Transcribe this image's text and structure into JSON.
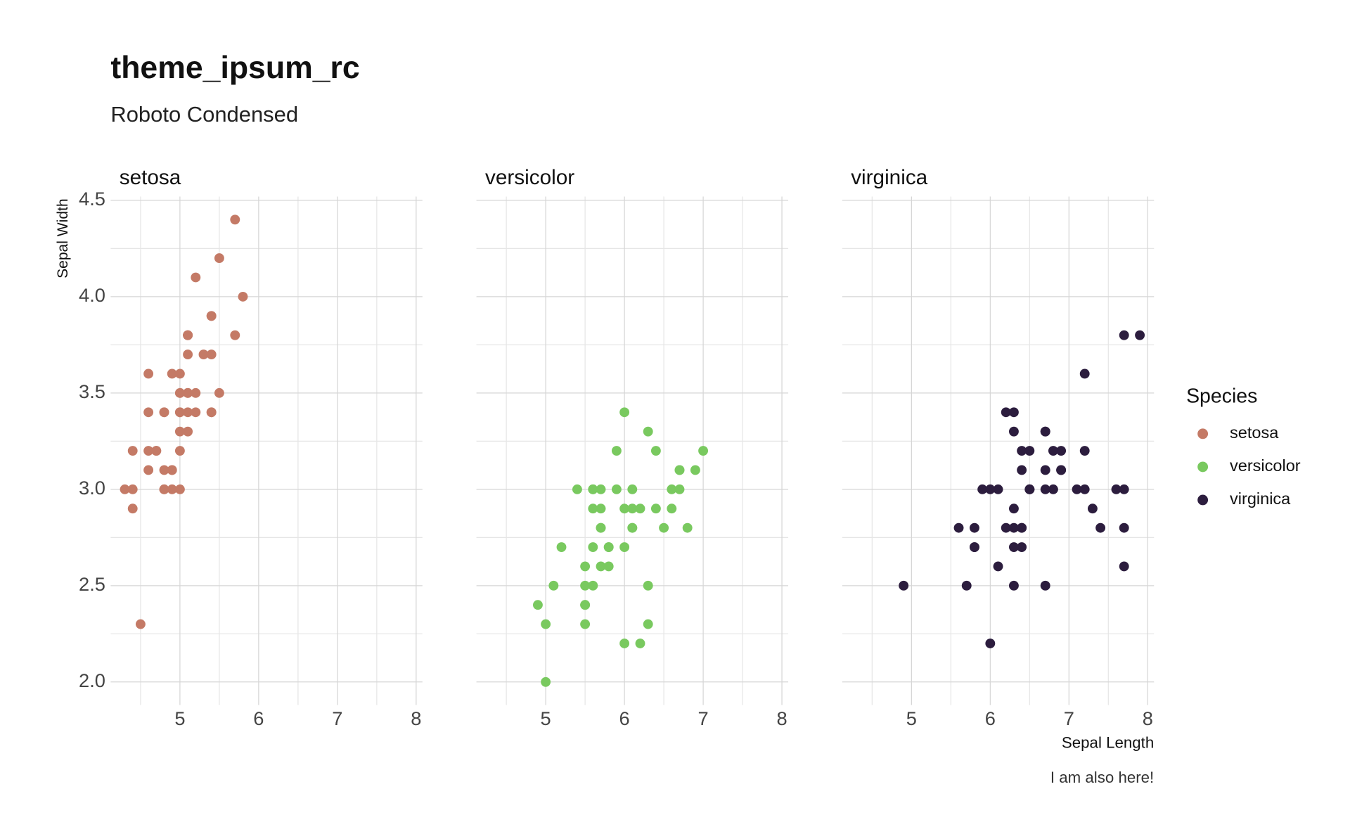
{
  "chart_data": {
    "type": "scatter",
    "title": "theme_ipsum_rc",
    "subtitle": "Roboto Condensed",
    "caption": "I am also here!",
    "xlabel": "Sepal Length",
    "ylabel": "Sepal Width",
    "legend_title": "Species",
    "legend_position": "right",
    "facet": true,
    "grid": true,
    "xlim": [
      4.12,
      8.08
    ],
    "ylim": [
      1.88,
      4.52
    ],
    "xticks": [
      5,
      6,
      7,
      8
    ],
    "yticks": [
      {
        "value": 2,
        "label": "2.0"
      },
      2.5,
      {
        "value": 3,
        "label": "3.0"
      },
      3.5,
      {
        "value": 4,
        "label": "4.0"
      },
      4.5
    ],
    "xminor": [
      4.5,
      5.5,
      6.5,
      7.5
    ],
    "yminor": [
      2.25,
      2.75,
      3.25,
      3.75,
      4.25
    ],
    "series": [
      {
        "name": "setosa",
        "color": "#c47a66",
        "x": [
          5.1,
          4.9,
          4.7,
          4.6,
          5.0,
          5.4,
          4.6,
          5.0,
          4.4,
          4.9,
          5.4,
          4.8,
          4.8,
          4.3,
          5.8,
          5.7,
          5.4,
          5.1,
          5.7,
          5.1,
          5.4,
          5.1,
          4.6,
          5.1,
          4.8,
          5.0,
          5.0,
          5.2,
          5.2,
          4.7,
          4.8,
          5.4,
          5.2,
          5.5,
          4.9,
          5.0,
          5.5,
          4.9,
          4.4,
          5.1,
          5.0,
          4.5,
          4.4,
          5.0,
          5.1,
          4.8,
          5.1,
          4.6,
          5.3,
          5.0
        ],
        "values": [
          3.5,
          3.0,
          3.2,
          3.1,
          3.6,
          3.9,
          3.4,
          3.4,
          2.9,
          3.1,
          3.7,
          3.4,
          3.0,
          3.0,
          4.0,
          4.4,
          3.9,
          3.5,
          3.8,
          3.8,
          3.4,
          3.7,
          3.6,
          3.3,
          3.4,
          3.0,
          3.4,
          3.5,
          3.4,
          3.2,
          3.1,
          3.4,
          4.1,
          4.2,
          3.1,
          3.2,
          3.5,
          3.6,
          3.0,
          3.4,
          3.5,
          2.3,
          3.2,
          3.5,
          3.8,
          3.0,
          3.8,
          3.2,
          3.7,
          3.3
        ]
      },
      {
        "name": "versicolor",
        "color": "#79c95f",
        "x": [
          7.0,
          6.4,
          6.9,
          5.5,
          6.5,
          5.7,
          6.3,
          4.9,
          6.6,
          5.2,
          5.0,
          5.9,
          6.0,
          6.1,
          5.6,
          6.7,
          5.6,
          5.8,
          6.2,
          5.6,
          5.9,
          6.1,
          6.3,
          6.1,
          6.4,
          6.6,
          6.8,
          6.7,
          6.0,
          5.7,
          5.5,
          5.5,
          5.8,
          6.0,
          5.4,
          6.0,
          6.7,
          6.3,
          5.6,
          5.5,
          5.5,
          6.1,
          5.8,
          5.0,
          5.6,
          5.7,
          5.7,
          6.2,
          5.1,
          5.7
        ],
        "values": [
          3.2,
          3.2,
          3.1,
          2.3,
          2.8,
          2.8,
          3.3,
          2.4,
          2.9,
          2.7,
          2.0,
          3.0,
          2.2,
          2.9,
          2.9,
          3.1,
          3.0,
          2.7,
          2.2,
          2.5,
          3.2,
          2.8,
          2.5,
          2.8,
          2.9,
          3.0,
          2.8,
          3.0,
          2.9,
          2.6,
          2.4,
          2.4,
          2.7,
          2.7,
          3.0,
          3.4,
          3.1,
          2.3,
          3.0,
          2.5,
          2.6,
          3.0,
          2.6,
          2.3,
          2.7,
          3.0,
          2.9,
          2.9,
          2.5,
          2.8
        ]
      },
      {
        "name": "virginica",
        "color": "#2c1d3e",
        "x": [
          6.3,
          5.8,
          7.1,
          6.3,
          6.5,
          7.6,
          4.9,
          7.3,
          6.7,
          7.2,
          6.5,
          6.4,
          6.8,
          5.7,
          5.8,
          6.4,
          6.5,
          7.7,
          7.7,
          6.0,
          6.9,
          5.6,
          7.7,
          6.3,
          6.7,
          7.2,
          6.2,
          6.1,
          6.4,
          7.2,
          7.4,
          7.9,
          6.4,
          6.3,
          6.1,
          7.7,
          6.3,
          6.4,
          6.0,
          6.9,
          6.7,
          6.9,
          5.8,
          6.8,
          6.7,
          6.7,
          6.3,
          6.5,
          6.2,
          5.9
        ],
        "values": [
          3.3,
          2.7,
          3.0,
          2.9,
          3.0,
          3.0,
          2.5,
          2.9,
          2.5,
          3.6,
          3.2,
          2.7,
          3.0,
          2.5,
          2.8,
          3.2,
          3.0,
          3.8,
          2.6,
          2.2,
          3.2,
          2.8,
          2.8,
          2.7,
          3.3,
          3.2,
          2.8,
          3.0,
          2.8,
          3.0,
          2.8,
          3.8,
          2.8,
          2.8,
          2.6,
          3.0,
          3.4,
          3.1,
          3.0,
          3.1,
          3.1,
          3.1,
          2.7,
          3.2,
          3.3,
          3.0,
          2.5,
          3.0,
          3.4,
          3.0
        ]
      }
    ]
  }
}
